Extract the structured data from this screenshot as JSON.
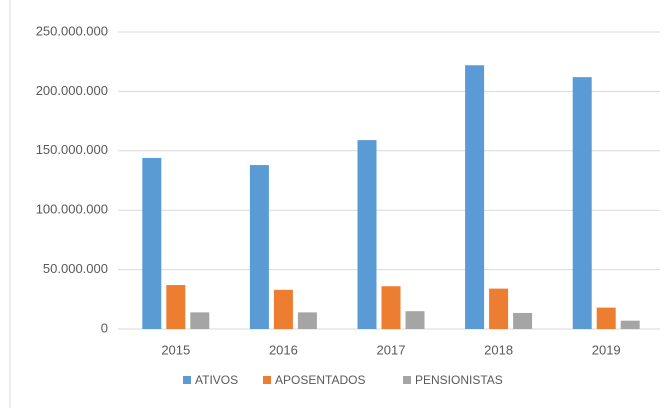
{
  "chart_data": {
    "type": "bar",
    "categories": [
      "2015",
      "2016",
      "2017",
      "2018",
      "2019"
    ],
    "series": [
      {
        "name": "ATIVOS",
        "color": "#5b9bd5",
        "values": [
          144000000,
          138000000,
          159000000,
          222000000,
          212000000
        ]
      },
      {
        "name": "APOSENTADOS",
        "color": "#ed7d31",
        "values": [
          37000000,
          33000000,
          36000000,
          34000000,
          18000000
        ]
      },
      {
        "name": "PENSIONISTAS",
        "color": "#a5a5a5",
        "values": [
          14000000,
          14000000,
          15000000,
          13500000,
          7000000
        ]
      }
    ],
    "ylim": [
      0,
      250000000
    ],
    "yticks": [
      0,
      {
        "value": 50000000,
        "label": "50.000.000"
      },
      {
        "value": 100000000,
        "label": "100.000.000"
      },
      {
        "value": 150000000,
        "label": "150.000.000"
      },
      {
        "value": 200000000,
        "label": "200.000.000"
      },
      {
        "value": 250000000,
        "label": "250.000.000"
      }
    ],
    "grid": true,
    "legend": "bottom"
  }
}
